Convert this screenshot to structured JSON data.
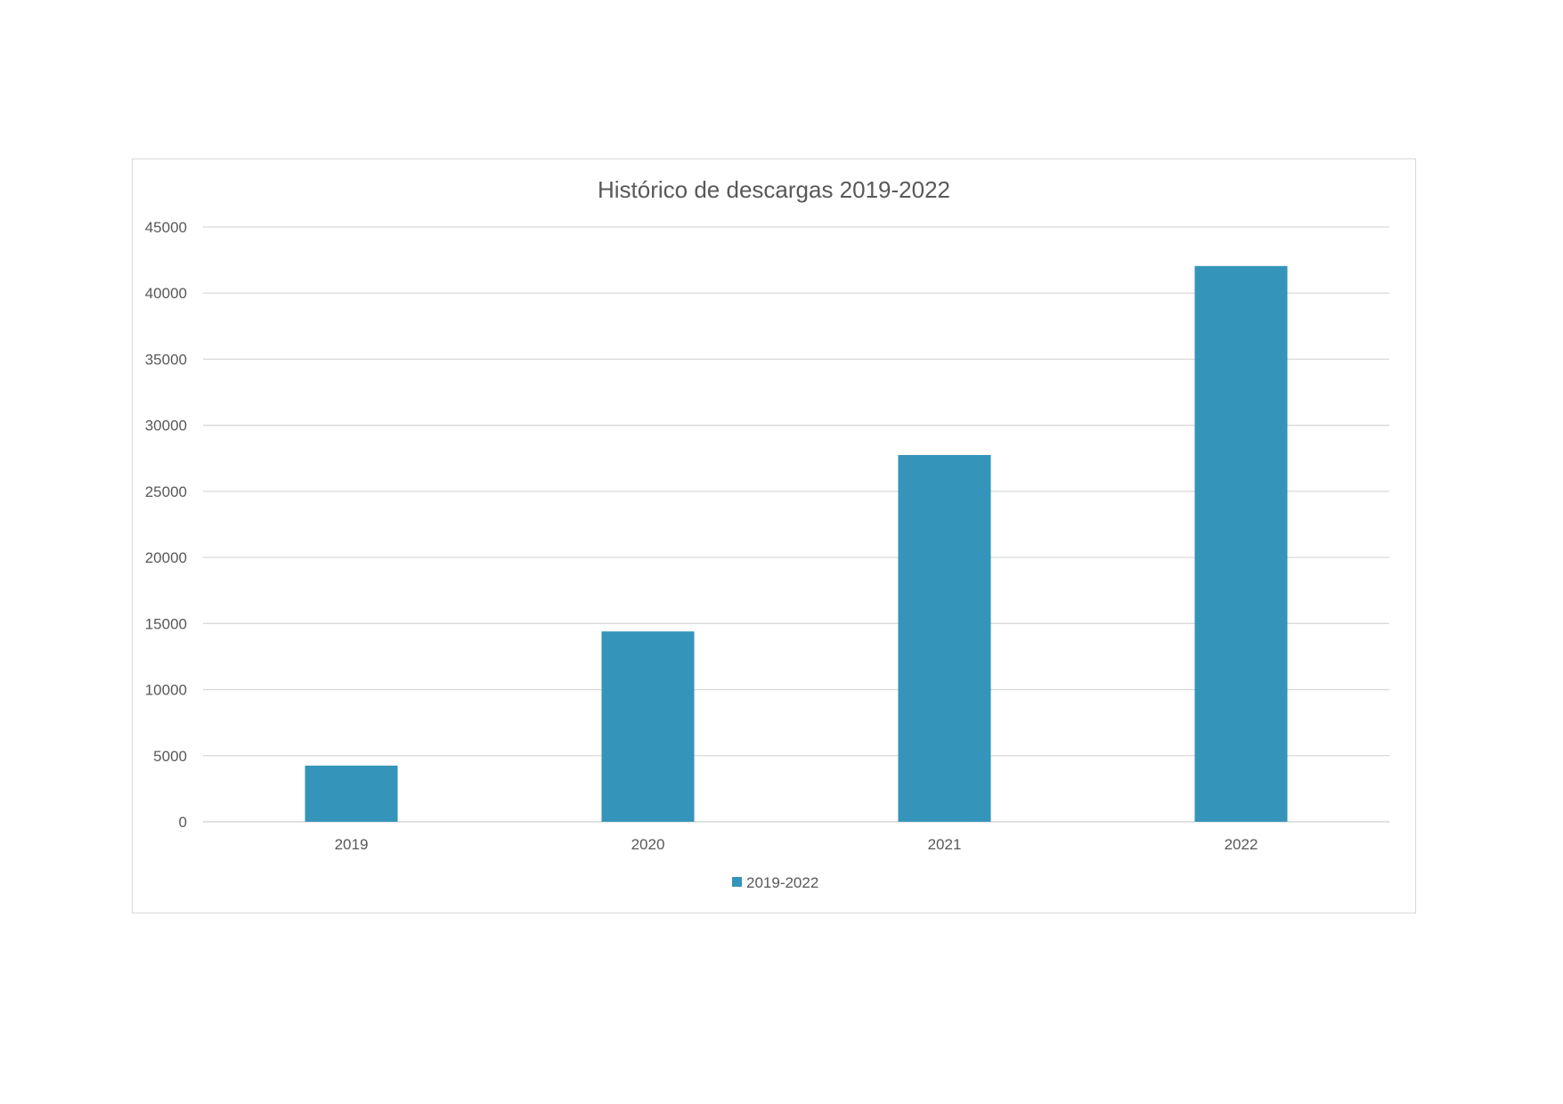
{
  "chart_data": {
    "type": "bar",
    "title": "Histórico de descargas 2019-2022",
    "categories": [
      "2019",
      "2020",
      "2021",
      "2022"
    ],
    "series": [
      {
        "name": "2019-2022",
        "values": [
          4250,
          14400,
          27750,
          42050
        ],
        "color": "#3594BA"
      }
    ],
    "xlabel": "",
    "ylabel": "",
    "ylim": [
      0,
      45000
    ],
    "yticks": [
      0,
      5000,
      10000,
      15000,
      20000,
      25000,
      30000,
      35000,
      40000,
      45000
    ],
    "grid": true,
    "legend": "bottom-center"
  }
}
